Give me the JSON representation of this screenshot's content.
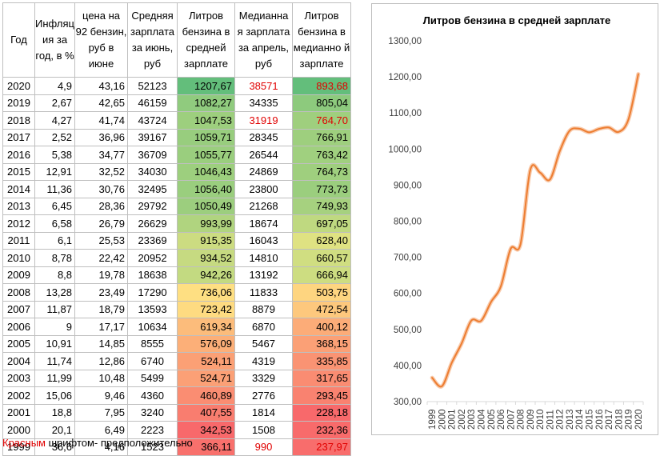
{
  "table": {
    "headers": [
      "Год",
      "Инфляц ия за год, в %",
      "цена на 92 бензин, руб в июне",
      "Средняя зарплата за июнь, руб",
      "Литров бензина в средней зарплате",
      "Медианна я зарплата за апрель, руб",
      "Литров бензина в медианно й зарплате"
    ],
    "rows": [
      {
        "year": "2020",
        "inflation": "4,9",
        "price": "43,16",
        "avg_salary": "52123",
        "liters_avg": "1207,67",
        "median_salary": "38571",
        "liters_median": "893,68",
        "median_red": true,
        "liters_median_red": true
      },
      {
        "year": "2019",
        "inflation": "2,67",
        "price": "42,65",
        "avg_salary": "46159",
        "liters_avg": "1082,27",
        "median_salary": "34335",
        "liters_median": "805,04",
        "median_red": false,
        "liters_median_red": false
      },
      {
        "year": "2018",
        "inflation": "4,27",
        "price": "41,74",
        "avg_salary": "43724",
        "liters_avg": "1047,53",
        "median_salary": "31919",
        "liters_median": "764,70",
        "median_red": true,
        "liters_median_red": true
      },
      {
        "year": "2017",
        "inflation": "2,52",
        "price": "36,96",
        "avg_salary": "39167",
        "liters_avg": "1059,71",
        "median_salary": "28345",
        "liters_median": "766,91",
        "median_red": false,
        "liters_median_red": false
      },
      {
        "year": "2016",
        "inflation": "5,38",
        "price": "34,77",
        "avg_salary": "36709",
        "liters_avg": "1055,77",
        "median_salary": "26544",
        "liters_median": "763,42",
        "median_red": false,
        "liters_median_red": false
      },
      {
        "year": "2015",
        "inflation": "12,91",
        "price": "32,52",
        "avg_salary": "34030",
        "liters_avg": "1046,43",
        "median_salary": "24869",
        "liters_median": "764,73",
        "median_red": false,
        "liters_median_red": false
      },
      {
        "year": "2014",
        "inflation": "11,36",
        "price": "30,76",
        "avg_salary": "32495",
        "liters_avg": "1056,40",
        "median_salary": "23800",
        "liters_median": "773,73",
        "median_red": false,
        "liters_median_red": false
      },
      {
        "year": "2013",
        "inflation": "6,45",
        "price": "28,36",
        "avg_salary": "29792",
        "liters_avg": "1050,49",
        "median_salary": "21268",
        "liters_median": "749,93",
        "median_red": false,
        "liters_median_red": false
      },
      {
        "year": "2012",
        "inflation": "6,58",
        "price": "26,79",
        "avg_salary": "26629",
        "liters_avg": "993,99",
        "median_salary": "18674",
        "liters_median": "697,05",
        "median_red": false,
        "liters_median_red": false
      },
      {
        "year": "2011",
        "inflation": "6,1",
        "price": "25,53",
        "avg_salary": "23369",
        "liters_avg": "915,35",
        "median_salary": "16043",
        "liters_median": "628,40",
        "median_red": false,
        "liters_median_red": false
      },
      {
        "year": "2010",
        "inflation": "8,78",
        "price": "22,42",
        "avg_salary": "20952",
        "liters_avg": "934,52",
        "median_salary": "14810",
        "liters_median": "660,57",
        "median_red": false,
        "liters_median_red": false
      },
      {
        "year": "2009",
        "inflation": "8,8",
        "price": "19,78",
        "avg_salary": "18638",
        "liters_avg": "942,26",
        "median_salary": "13192",
        "liters_median": "666,94",
        "median_red": false,
        "liters_median_red": false
      },
      {
        "year": "2008",
        "inflation": "13,28",
        "price": "23,49",
        "avg_salary": "17290",
        "liters_avg": "736,06",
        "median_salary": "11833",
        "liters_median": "503,75",
        "median_red": false,
        "liters_median_red": false
      },
      {
        "year": "2007",
        "inflation": "11,87",
        "price": "18,79",
        "avg_salary": "13593",
        "liters_avg": "723,42",
        "median_salary": "8879",
        "liters_median": "472,54",
        "median_red": false,
        "liters_median_red": false
      },
      {
        "year": "2006",
        "inflation": "9",
        "price": "17,17",
        "avg_salary": "10634",
        "liters_avg": "619,34",
        "median_salary": "6870",
        "liters_median": "400,12",
        "median_red": false,
        "liters_median_red": false
      },
      {
        "year": "2005",
        "inflation": "10,91",
        "price": "14,85",
        "avg_salary": "8555",
        "liters_avg": "576,09",
        "median_salary": "5467",
        "liters_median": "368,15",
        "median_red": false,
        "liters_median_red": false
      },
      {
        "year": "2004",
        "inflation": "11,74",
        "price": "12,86",
        "avg_salary": "6740",
        "liters_avg": "524,11",
        "median_salary": "4319",
        "liters_median": "335,85",
        "median_red": false,
        "liters_median_red": false
      },
      {
        "year": "2003",
        "inflation": "11,99",
        "price": "10,48",
        "avg_salary": "5499",
        "liters_avg": "524,71",
        "median_salary": "3329",
        "liters_median": "317,65",
        "median_red": false,
        "liters_median_red": false
      },
      {
        "year": "2002",
        "inflation": "15,06",
        "price": "9,46",
        "avg_salary": "4360",
        "liters_avg": "460,89",
        "median_salary": "2776",
        "liters_median": "293,45",
        "median_red": false,
        "liters_median_red": false
      },
      {
        "year": "2001",
        "inflation": "18,8",
        "price": "7,95",
        "avg_salary": "3240",
        "liters_avg": "407,55",
        "median_salary": "1814",
        "liters_median": "228,18",
        "median_red": false,
        "liters_median_red": false
      },
      {
        "year": "2000",
        "inflation": "20,1",
        "price": "6,49",
        "avg_salary": "2223",
        "liters_avg": "342,53",
        "median_salary": "1508",
        "liters_median": "232,36",
        "median_red": false,
        "liters_median_red": false
      },
      {
        "year": "1999",
        "inflation": "36,6",
        "price": "4,16",
        "avg_salary": "1523",
        "liters_avg": "366,11",
        "median_salary": "990",
        "liters_median": "237,97",
        "median_red": true,
        "liters_median_red": true
      }
    ]
  },
  "note": {
    "red_word": "Красным",
    "rest": " шрифтом- предположительно"
  },
  "colors": {
    "red_text": "#e00000",
    "scale_low": "#f8696b",
    "scale_mid": "#ffeb84",
    "scale_high": "#63be7b",
    "line": "#ed7d31",
    "line_glow": "#f8cbad"
  },
  "chart_data": {
    "type": "line",
    "title": "Литров бензина в средней зарплате",
    "x": [
      "1999",
      "2000",
      "2001",
      "2002",
      "2003",
      "2004",
      "2005",
      "2006",
      "2007",
      "2008",
      "2009",
      "2010",
      "2011",
      "2012",
      "2013",
      "2014",
      "2015",
      "2016",
      "2017",
      "2018",
      "2019",
      "2020"
    ],
    "series": [
      {
        "name": "Литров бензина в средней зарплате",
        "values": [
          366.11,
          342.53,
          407.55,
          460.89,
          524.71,
          524.11,
          576.09,
          619.34,
          723.42,
          736.06,
          942.26,
          934.52,
          915.35,
          993.99,
          1050.49,
          1056.4,
          1046.43,
          1055.77,
          1059.71,
          1047.53,
          1082.27,
          1207.67
        ]
      }
    ],
    "ylim": [
      300,
      1300
    ],
    "yticks": [
      "300,00",
      "400,00",
      "500,00",
      "600,00",
      "700,00",
      "800,00",
      "900,00",
      "1000,00",
      "1100,00",
      "1200,00",
      "1300,00"
    ],
    "grid": false,
    "legend": "none",
    "xlabel": "",
    "ylabel": ""
  }
}
